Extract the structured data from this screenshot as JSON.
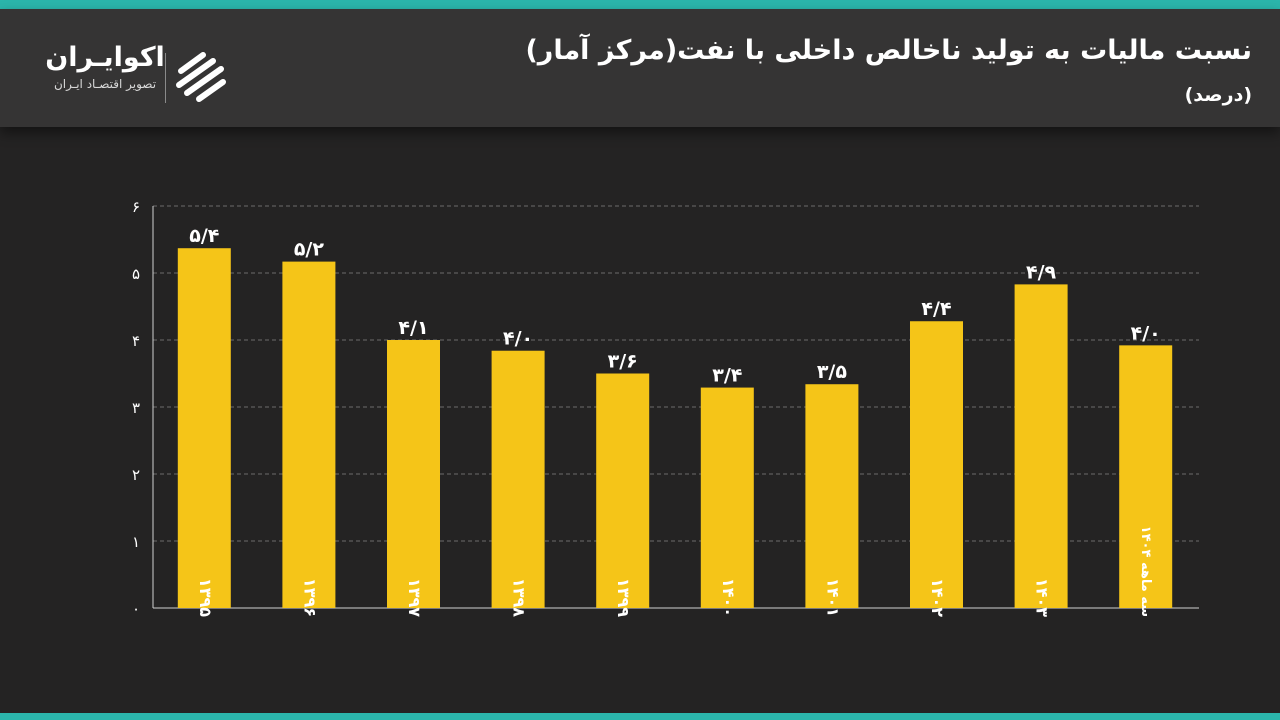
{
  "header": {
    "title": "نسبت مالیات به تولید ناخالص داخلی با نفت(مرکز آمار)",
    "subtitle": "(درصد)"
  },
  "brand": {
    "name": "اکوایـران",
    "tagline": "تصویر اقتصـاد ایـران",
    "logo_icon": "ecoiran-logo-icon"
  },
  "colors": {
    "bar": "#f5c518",
    "accent": "#2bb5ab",
    "background": "#242323",
    "header_background": "#353434"
  },
  "chart_data": {
    "type": "bar",
    "categories": [
      "۱۳۹۵",
      "۱۳۹۶",
      "۱۳۹۷",
      "۱۳۹۸",
      "۱۳۹۹",
      "۱۴۰۰",
      "۱۴۰۱",
      "۱۴۰۲",
      "۱۴۰۳",
      "سه ماهه ۱۴۰۴"
    ],
    "values": [
      5.4,
      5.2,
      4.1,
      4.0,
      3.6,
      3.4,
      3.5,
      4.4,
      4.9,
      4.0
    ],
    "value_labels": [
      "۵/۴",
      "۵/۲",
      "۴/۱",
      "۴/۰",
      "۳/۶",
      "۳/۴",
      "۳/۵",
      "۴/۴",
      "۴/۹",
      "۴/۰"
    ],
    "bar_heights": [
      5.37,
      5.17,
      4.0,
      3.84,
      3.5,
      3.29,
      3.34,
      4.28,
      4.83,
      3.92
    ],
    "yticks": [
      0,
      1,
      2,
      3,
      4,
      5,
      6
    ],
    "ytick_labels": [
      "۰",
      "۱",
      "۲",
      "۳",
      "۴",
      "۵",
      "۶"
    ],
    "ylim": [
      0,
      6
    ],
    "grid": true,
    "xlabel": "",
    "ylabel": ""
  }
}
